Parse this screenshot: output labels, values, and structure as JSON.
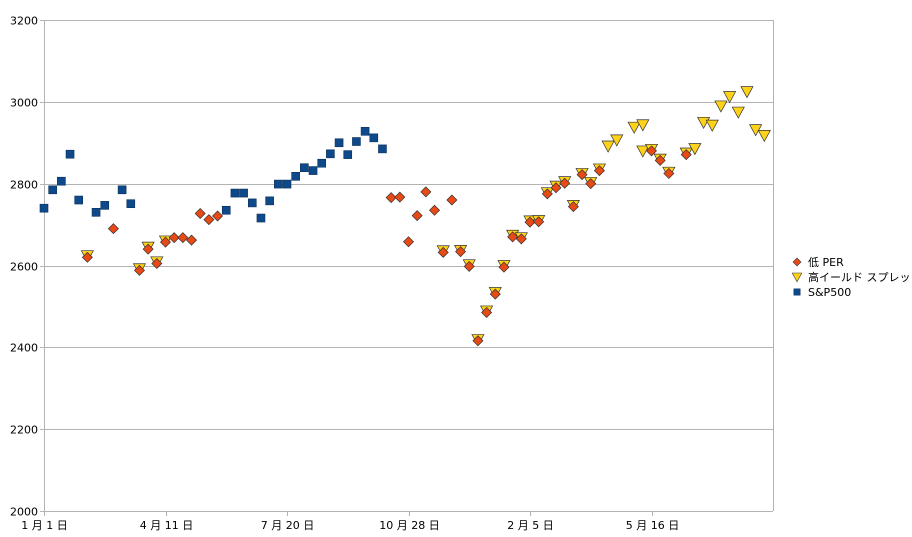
{
  "chart_data": {
    "type": "scatter",
    "title": "",
    "xlabel": "",
    "ylabel": "",
    "ylim": [
      2000,
      3200
    ],
    "y_ticks": [
      2000,
      2200,
      2400,
      2600,
      2800,
      3000,
      3200
    ],
    "x_ticks": [
      {
        "x": 0,
        "label": "1 月 1 日"
      },
      {
        "x": 14,
        "label": "4 月 11 日"
      },
      {
        "x": 28,
        "label": "7 月 20 日"
      },
      {
        "x": 42,
        "label": "10 月 28 日"
      },
      {
        "x": 56,
        "label": "2 月 5 日"
      },
      {
        "x": 70,
        "label": "5 月 16 日"
      }
    ],
    "xlim": [
      0,
      84
    ],
    "grid": "horizontal",
    "legend_position": "right",
    "series": [
      {
        "name": "低 PER",
        "marker": "diamond",
        "color": "#e84a16",
        "points": [
          [
            5,
            2620
          ],
          [
            8,
            2690
          ],
          [
            11,
            2588
          ],
          [
            12,
            2640
          ],
          [
            13,
            2605
          ],
          [
            14,
            2657
          ],
          [
            15,
            2668
          ],
          [
            16,
            2668
          ],
          [
            17,
            2662
          ],
          [
            18,
            2727
          ],
          [
            19,
            2712
          ],
          [
            20,
            2721
          ],
          [
            40,
            2766
          ],
          [
            41,
            2767
          ],
          [
            42,
            2658
          ],
          [
            43,
            2722
          ],
          [
            44,
            2780
          ],
          [
            45,
            2735
          ],
          [
            46,
            2632
          ],
          [
            47,
            2760
          ],
          [
            48,
            2634
          ],
          [
            49,
            2598
          ],
          [
            50,
            2416
          ],
          [
            51,
            2485
          ],
          [
            52,
            2530
          ],
          [
            53,
            2596
          ],
          [
            54,
            2670
          ],
          [
            55,
            2665
          ],
          [
            56,
            2706
          ],
          [
            57,
            2707
          ],
          [
            58,
            2775
          ],
          [
            59,
            2790
          ],
          [
            60,
            2801
          ],
          [
            61,
            2744
          ],
          [
            62,
            2822
          ],
          [
            63,
            2800
          ],
          [
            64,
            2832
          ],
          [
            70,
            2880
          ],
          [
            71,
            2857
          ],
          [
            72,
            2825
          ],
          [
            74,
            2871
          ]
        ]
      },
      {
        "name": "高イールド スプレッド",
        "marker": "triangle-down",
        "color": "#ffd21a",
        "points": [
          [
            5,
            2624
          ],
          [
            11,
            2592
          ],
          [
            12,
            2645
          ],
          [
            13,
            2609
          ],
          [
            14,
            2660
          ],
          [
            46,
            2636
          ],
          [
            48,
            2637
          ],
          [
            49,
            2602
          ],
          [
            50,
            2419
          ],
          [
            51,
            2489
          ],
          [
            52,
            2534
          ],
          [
            53,
            2600
          ],
          [
            54,
            2674
          ],
          [
            55,
            2668
          ],
          [
            56,
            2709
          ],
          [
            57,
            2710
          ],
          [
            58,
            2778
          ],
          [
            59,
            2794
          ],
          [
            60,
            2805
          ],
          [
            61,
            2747
          ],
          [
            62,
            2825
          ],
          [
            63,
            2803
          ],
          [
            64,
            2836
          ],
          [
            65,
            2892
          ],
          [
            66,
            2907
          ],
          [
            68,
            2938
          ],
          [
            69,
            2880
          ],
          [
            69,
            2944
          ],
          [
            70,
            2884
          ],
          [
            71,
            2860
          ],
          [
            72,
            2828
          ],
          [
            74,
            2875
          ],
          [
            75,
            2886
          ],
          [
            76,
            2950
          ],
          [
            77,
            2943
          ],
          [
            78,
            2990
          ],
          [
            79,
            3013
          ],
          [
            80,
            2975
          ],
          [
            81,
            3025
          ],
          [
            82,
            2932
          ],
          [
            83,
            2918
          ]
        ]
      },
      {
        "name": "S&P500",
        "marker": "square",
        "color": "#0e4a8a",
        "points": [
          [
            0,
            2740
          ],
          [
            1,
            2785
          ],
          [
            2,
            2806
          ],
          [
            3,
            2872
          ],
          [
            4,
            2760
          ],
          [
            6,
            2730
          ],
          [
            7,
            2747
          ],
          [
            9,
            2785
          ],
          [
            10,
            2751
          ],
          [
            21,
            2735
          ],
          [
            22,
            2777
          ],
          [
            23,
            2777
          ],
          [
            24,
            2753
          ],
          [
            25,
            2716
          ],
          [
            26,
            2758
          ],
          [
            27,
            2799
          ],
          [
            28,
            2799
          ],
          [
            29,
            2818
          ],
          [
            30,
            2839
          ],
          [
            31,
            2832
          ],
          [
            32,
            2850
          ],
          [
            33,
            2873
          ],
          [
            34,
            2900
          ],
          [
            35,
            2871
          ],
          [
            36,
            2903
          ],
          [
            37,
            2928
          ],
          [
            38,
            2912
          ],
          [
            39,
            2885
          ]
        ]
      }
    ]
  }
}
